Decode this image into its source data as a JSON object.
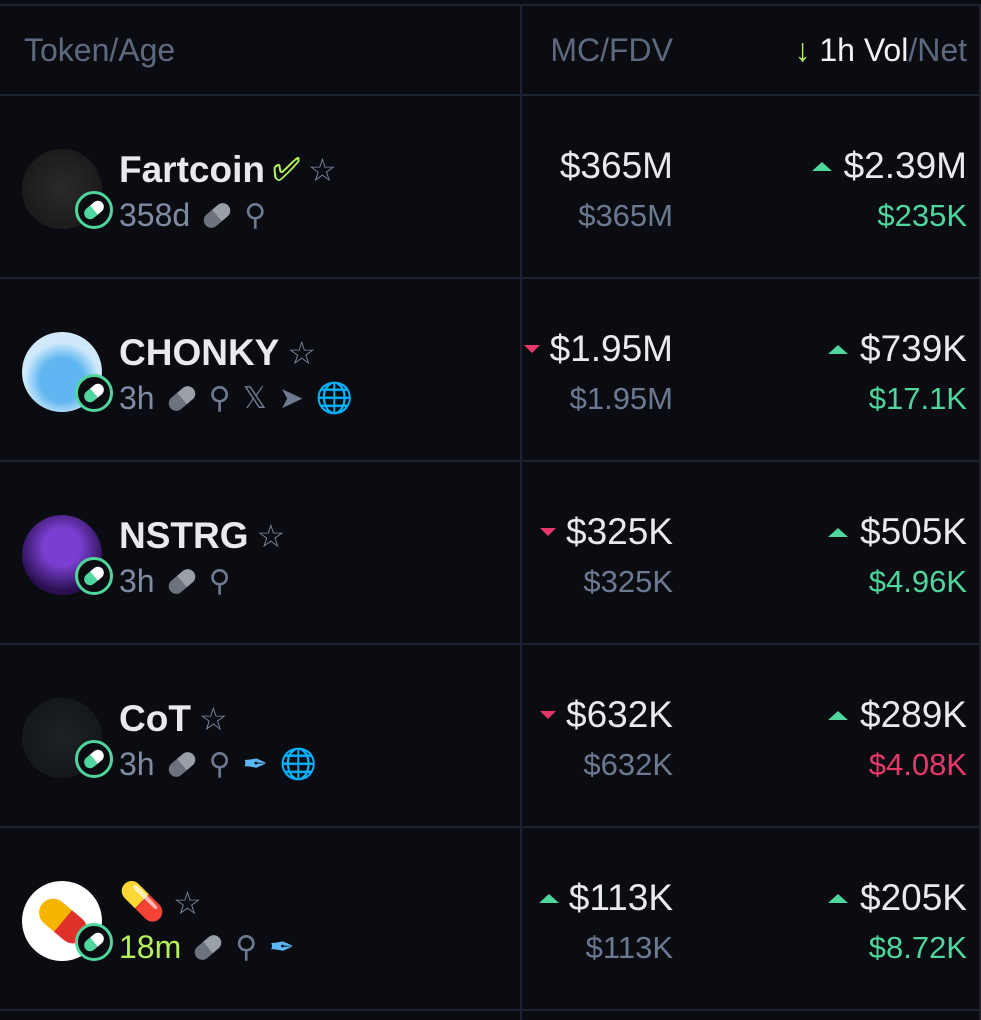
{
  "header": {
    "token_age": "Token/Age",
    "mc_fdv": "MC/FDV",
    "sort_arrow": "↓",
    "vol": "1h Vol",
    "net": "/Net"
  },
  "colors": {
    "up": "#4fd69c",
    "down": "#e8386a",
    "accent": "#b5f05a",
    "muted": "#6b7a90"
  },
  "rows": [
    {
      "name": "Fartcoin",
      "verified": true,
      "age": "358d",
      "icons": [
        "pill-icon",
        "search-icon"
      ],
      "mc": "$365M",
      "mc_trend": "none",
      "fdv": "$365M",
      "vol": "$2.39M",
      "vol_trend": "up",
      "net": "$235K",
      "net_trend": "up"
    },
    {
      "name": "CHONKY",
      "age": "3h",
      "icons": [
        "pill-icon",
        "search-icon",
        "x-icon",
        "telegram-icon",
        "globe-icon"
      ],
      "mc": "$1.95M",
      "mc_trend": "down",
      "fdv": "$1.95M",
      "vol": "$739K",
      "vol_trend": "up",
      "net": "$17.1K",
      "net_trend": "up"
    },
    {
      "name": "NSTRG",
      "age": "3h",
      "icons": [
        "pill-icon",
        "search-icon"
      ],
      "mc": "$325K",
      "mc_trend": "down",
      "fdv": "$325K",
      "vol": "$505K",
      "vol_trend": "up",
      "net": "$4.96K",
      "net_trend": "up"
    },
    {
      "name": "CoT",
      "age": "3h",
      "icons": [
        "pill-icon",
        "search-icon",
        "feather-icon",
        "globe-icon"
      ],
      "mc": "$632K",
      "mc_trend": "down",
      "fdv": "$632K",
      "vol": "$289K",
      "vol_trend": "up",
      "net": "$4.08K",
      "net_trend": "down"
    },
    {
      "name": "💊",
      "age": "18m",
      "icons": [
        "pill-icon",
        "search-icon",
        "feather-icon"
      ],
      "mc": "$113K",
      "mc_trend": "up",
      "fdv": "$113K",
      "vol": "$205K",
      "vol_trend": "up",
      "net": "$8.72K",
      "net_trend": "up"
    }
  ]
}
